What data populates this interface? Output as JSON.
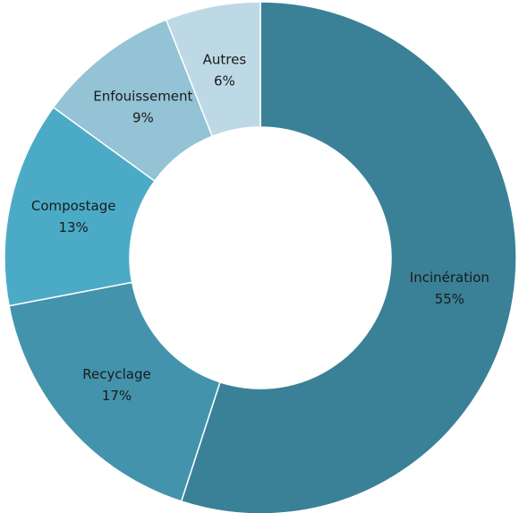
{
  "chart_data": {
    "type": "donut",
    "categories": [
      "Incinération",
      "Recyclage",
      "Compostage",
      "Enfouissement",
      "Autres"
    ],
    "values": [
      55,
      17,
      13,
      9,
      6
    ],
    "value_labels": [
      "55%",
      "17%",
      "13%",
      "9%",
      "6%"
    ],
    "colors": [
      "#3a8197",
      "#4393ac",
      "#4babc7",
      "#93c3d5",
      "#bdd9e5"
    ]
  }
}
